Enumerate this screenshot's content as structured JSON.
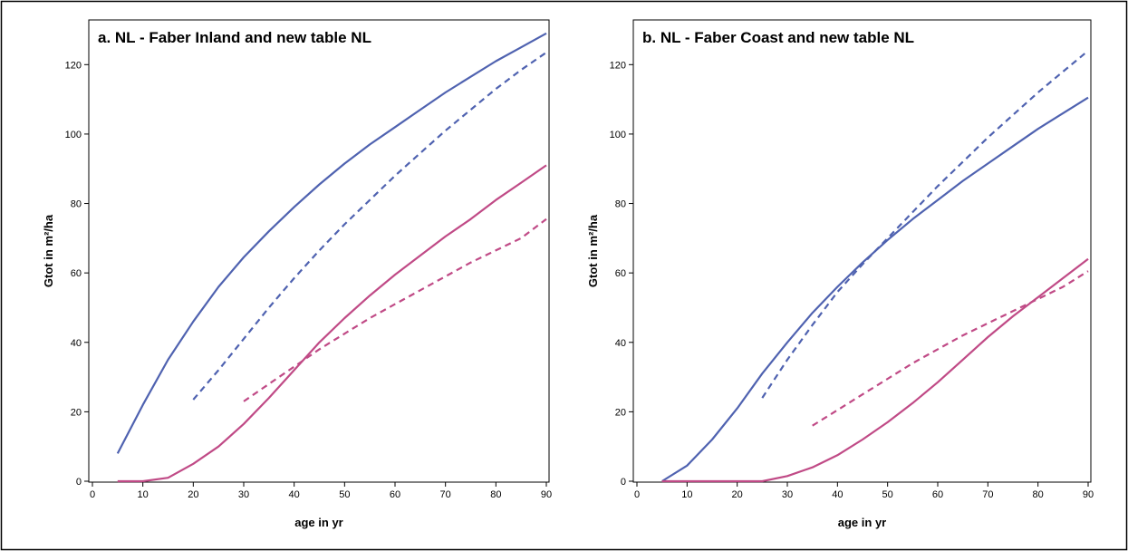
{
  "chart_data": [
    {
      "type": "line",
      "title": "a. NL - Faber Inland and new table NL",
      "xlabel": "age in yr",
      "ylabel": "Gtot in m²/ha",
      "xlim": [
        0,
        90
      ],
      "ylim": [
        0,
        130
      ],
      "xticks": [
        0,
        10,
        20,
        30,
        40,
        50,
        60,
        70,
        80,
        90
      ],
      "yticks": [
        0,
        20,
        40,
        60,
        80,
        100,
        120
      ],
      "grid": false,
      "series": [
        {
          "color": "#4f62b0",
          "dash": "solid",
          "x": [
            5,
            10,
            15,
            20,
            25,
            30,
            35,
            40,
            45,
            50,
            55,
            60,
            65,
            70,
            75,
            80,
            85,
            90
          ],
          "y": [
            8,
            22,
            35,
            46,
            56,
            64.5,
            72,
            79,
            85.5,
            91.5,
            97,
            102,
            107,
            112,
            116.5,
            121,
            125,
            129
          ]
        },
        {
          "color": "#4f62b0",
          "dash": "dashed",
          "x": [
            20,
            25,
            30,
            35,
            40,
            45,
            50,
            55,
            60,
            65,
            70,
            75,
            80,
            85,
            90
          ],
          "y": [
            23.5,
            32,
            41,
            50,
            58.5,
            66.5,
            74,
            81,
            88,
            94.5,
            101,
            107,
            113,
            118.5,
            123.5
          ]
        },
        {
          "color": "#c04a86",
          "dash": "solid",
          "x": [
            5,
            10,
            15,
            20,
            25,
            30,
            35,
            40,
            45,
            50,
            55,
            60,
            65,
            70,
            75,
            80,
            85,
            90
          ],
          "y": [
            0,
            0,
            1,
            5,
            10,
            16.5,
            24,
            32,
            40,
            47,
            53.5,
            59.5,
            65,
            70.5,
            75.5,
            81,
            86,
            91
          ]
        },
        {
          "color": "#c04a86",
          "dash": "dashed",
          "x": [
            30,
            35,
            40,
            45,
            50,
            55,
            60,
            65,
            70,
            75,
            80,
            85,
            90
          ],
          "y": [
            23,
            28,
            33,
            38,
            42.5,
            47,
            51,
            55,
            59,
            63,
            66.5,
            70,
            75.5
          ]
        }
      ]
    },
    {
      "type": "line",
      "title": "b. NL - Faber Coast and new table NL",
      "xlabel": "age in yr",
      "ylabel": "Gtot in m²/ha",
      "xlim": [
        0,
        90
      ],
      "ylim": [
        0,
        130
      ],
      "xticks": [
        0,
        10,
        20,
        30,
        40,
        50,
        60,
        70,
        80,
        90
      ],
      "yticks": [
        0,
        20,
        40,
        60,
        80,
        100,
        120
      ],
      "grid": false,
      "series": [
        {
          "color": "#4f62b0",
          "dash": "solid",
          "x": [
            5,
            10,
            15,
            20,
            25,
            30,
            35,
            40,
            45,
            50,
            55,
            60,
            65,
            70,
            75,
            80,
            85,
            90
          ],
          "y": [
            0,
            4.5,
            12,
            21,
            31,
            40,
            48.5,
            56,
            63,
            69.5,
            75.5,
            81,
            86.5,
            91.5,
            96.5,
            101.5,
            106,
            110.5
          ]
        },
        {
          "color": "#4f62b0",
          "dash": "dashed",
          "x": [
            25,
            30,
            35,
            40,
            45,
            50,
            55,
            60,
            65,
            70,
            75,
            80,
            85,
            90
          ],
          "y": [
            24,
            35,
            45,
            54.5,
            62.5,
            70,
            77.5,
            85,
            92,
            99,
            105.5,
            112,
            118,
            124
          ]
        },
        {
          "color": "#c04a86",
          "dash": "solid",
          "x": [
            5,
            10,
            15,
            20,
            25,
            30,
            35,
            40,
            45,
            50,
            55,
            60,
            65,
            70,
            75,
            80,
            85,
            90
          ],
          "y": [
            0,
            0,
            0,
            0,
            0,
            1.5,
            4,
            7.5,
            12,
            17,
            22.5,
            28.5,
            35,
            41.5,
            47.5,
            53,
            58.5,
            64
          ]
        },
        {
          "color": "#c04a86",
          "dash": "dashed",
          "x": [
            35,
            40,
            45,
            50,
            55,
            60,
            65,
            70,
            75,
            80,
            85,
            90
          ],
          "y": [
            16,
            20.5,
            25,
            29.5,
            34,
            38,
            42,
            45.5,
            49,
            52.5,
            56,
            60.5
          ]
        }
      ]
    }
  ]
}
